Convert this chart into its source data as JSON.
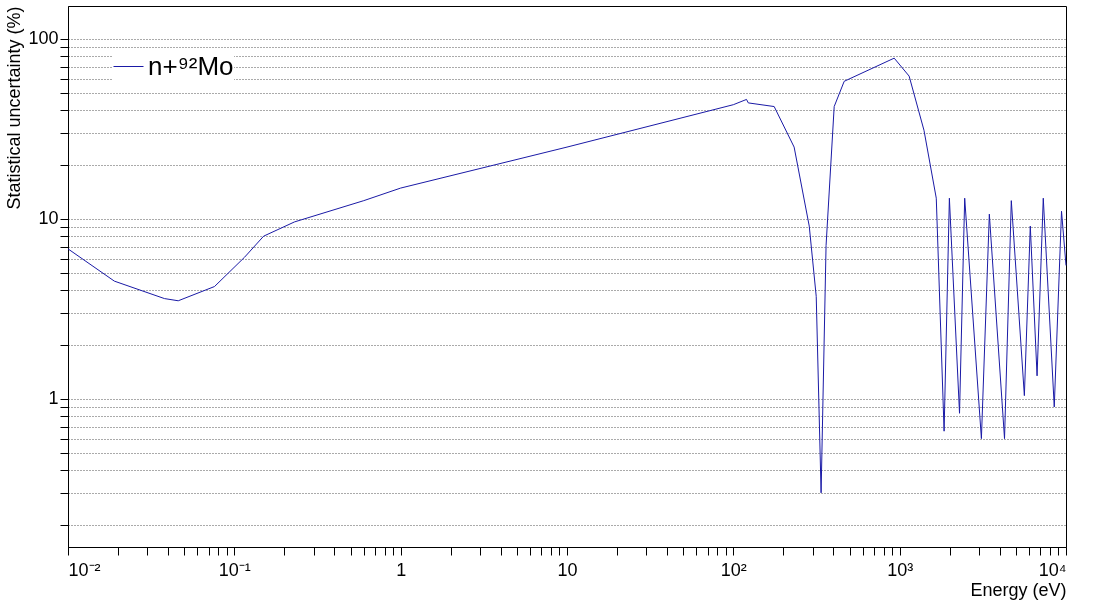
{
  "chart_data": {
    "type": "line",
    "xlabel": "Energy (eV)",
    "ylabel": "Statistical uncertainty (%)",
    "log": "xy",
    "grid": "y",
    "legend": "top left",
    "marker": "none",
    "line_style": "solid",
    "xlim": [
      0.01,
      10000
    ],
    "ylim": [
      0.15,
      152
    ],
    "xticks": [
      {
        "value": 0.01,
        "label": "10⁻²"
      },
      {
        "value": 0.02,
        "label": null
      },
      {
        "value": 0.03,
        "label": null
      },
      {
        "value": 0.04,
        "label": null
      },
      {
        "value": 0.05,
        "label": null
      },
      {
        "value": 0.06,
        "label": null
      },
      {
        "value": 0.07,
        "label": null
      },
      {
        "value": 0.08,
        "label": null
      },
      {
        "value": 0.09,
        "label": null
      },
      {
        "value": 0.1,
        "label": "10⁻¹"
      },
      {
        "value": 0.2,
        "label": null
      },
      {
        "value": 0.3,
        "label": null
      },
      {
        "value": 0.4,
        "label": null
      },
      {
        "value": 0.5,
        "label": null
      },
      {
        "value": 0.6,
        "label": null
      },
      {
        "value": 0.7,
        "label": null
      },
      {
        "value": 0.8,
        "label": null
      },
      {
        "value": 0.9,
        "label": null
      },
      1,
      {
        "value": 2,
        "label": null
      },
      {
        "value": 3,
        "label": null
      },
      {
        "value": 4,
        "label": null
      },
      {
        "value": 5,
        "label": null
      },
      {
        "value": 6,
        "label": null
      },
      {
        "value": 7,
        "label": null
      },
      {
        "value": 8,
        "label": null
      },
      {
        "value": 9,
        "label": null
      },
      10,
      {
        "value": 20,
        "label": null
      },
      {
        "value": 30,
        "label": null
      },
      {
        "value": 40,
        "label": null
      },
      {
        "value": 50,
        "label": null
      },
      {
        "value": 60,
        "label": null
      },
      {
        "value": 70,
        "label": null
      },
      {
        "value": 80,
        "label": null
      },
      {
        "value": 90,
        "label": null
      },
      {
        "value": 100,
        "label": "10²"
      },
      {
        "value": 200,
        "label": null
      },
      {
        "value": 300,
        "label": null
      },
      {
        "value": 400,
        "label": null
      },
      {
        "value": 500,
        "label": null
      },
      {
        "value": 600,
        "label": null
      },
      {
        "value": 700,
        "label": null
      },
      {
        "value": 800,
        "label": null
      },
      {
        "value": 900,
        "label": null
      },
      {
        "value": 1000,
        "label": "10³"
      },
      {
        "value": 2000,
        "label": null
      },
      {
        "value": 3000,
        "label": null
      },
      {
        "value": 4000,
        "label": null
      },
      {
        "value": 5000,
        "label": null
      },
      {
        "value": 6000,
        "label": null
      },
      {
        "value": 7000,
        "label": null
      },
      {
        "value": 8000,
        "label": null
      },
      {
        "value": 9000,
        "label": null
      },
      {
        "value": 10000,
        "label": "10⁴"
      }
    ],
    "yticks": [
      {
        "value": 0.2,
        "label": null
      },
      {
        "value": 0.3,
        "label": null
      },
      {
        "value": 0.4,
        "label": null
      },
      {
        "value": 0.5,
        "label": null
      },
      {
        "value": 0.6,
        "label": null
      },
      {
        "value": 0.7,
        "label": null
      },
      {
        "value": 0.8,
        "label": null
      },
      {
        "value": 0.9,
        "label": null
      },
      1,
      {
        "value": 2,
        "label": null
      },
      {
        "value": 3,
        "label": null
      },
      {
        "value": 4,
        "label": null
      },
      {
        "value": 5,
        "label": null
      },
      {
        "value": 6,
        "label": null
      },
      {
        "value": 7,
        "label": null
      },
      {
        "value": 8,
        "label": null
      },
      {
        "value": 9,
        "label": null
      },
      10,
      {
        "value": 20,
        "label": null
      },
      {
        "value": 30,
        "label": null
      },
      {
        "value": 40,
        "label": null
      },
      {
        "value": 50,
        "label": null
      },
      {
        "value": 60,
        "label": null
      },
      {
        "value": 70,
        "label": null
      },
      {
        "value": 80,
        "label": null
      },
      {
        "value": 90,
        "label": null
      },
      100
    ],
    "series": [
      {
        "name": "n+⁹²Mo",
        "color": "#1a1aa6",
        "x": [
          0.01,
          0.019,
          0.038,
          0.046,
          0.076,
          0.115,
          0.15,
          0.23,
          0.6,
          1,
          10,
          100,
          120,
          123,
          176,
          232,
          286,
          315,
          337,
          361,
          404,
          464,
          927,
          1140,
          1400,
          1660,
          1850,
          1990,
          2290,
          2460,
          3100,
          3460,
          4270,
          4690,
          5620,
          6100,
          6700,
          7300,
          8500,
          9400,
          10000
        ],
        "values": [
          6.8,
          4.5,
          3.6,
          3.5,
          4.2,
          6.1,
          8.0,
          9.6,
          12.6,
          14.8,
          25,
          43,
          46,
          44,
          42,
          25,
          9.1,
          3.7,
          0.3,
          7.1,
          42,
          58,
          78,
          62,
          31,
          13,
          0.66,
          13,
          0.83,
          13,
          0.6,
          10.6,
          0.6,
          12.6,
          1.04,
          9.1,
          1.34,
          13,
          0.9,
          11,
          5.5
        ]
      }
    ]
  }
}
